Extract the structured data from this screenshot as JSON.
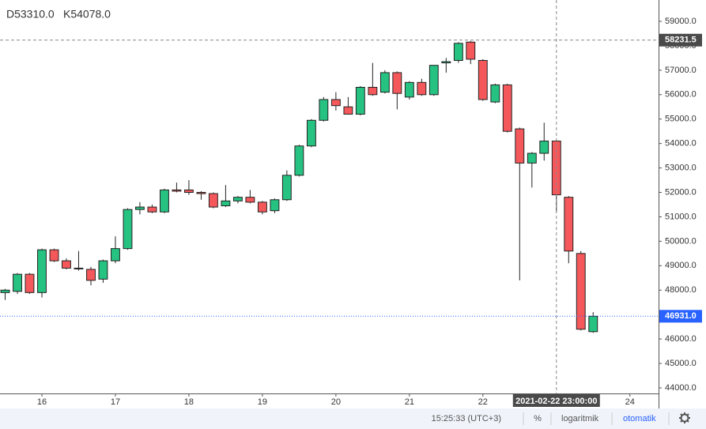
{
  "chart_data": {
    "type": "candlestick",
    "legend_texts": [
      "D53310.0",
      "K54078.0"
    ],
    "x": [
      15.5,
      15.667,
      15.833,
      16.0,
      16.167,
      16.333,
      16.5,
      16.667,
      16.833,
      17.0,
      17.167,
      17.333,
      17.5,
      17.667,
      17.833,
      18.0,
      18.167,
      18.333,
      18.5,
      18.667,
      18.833,
      19.0,
      19.167,
      19.333,
      19.5,
      19.667,
      19.833,
      20.0,
      20.167,
      20.333,
      20.5,
      20.667,
      20.833,
      21.0,
      21.167,
      21.333,
      21.5,
      21.667,
      21.833,
      22.0,
      22.167,
      22.333,
      22.5,
      22.667,
      22.833,
      23.0,
      23.167,
      23.333,
      23.5
    ],
    "series": [
      {
        "name": "open",
        "values": [
          47900,
          47950,
          48650,
          47900,
          49650,
          49200,
          48900,
          48850,
          48450,
          49200,
          49700,
          51300,
          51400,
          51200,
          52100,
          52100,
          52000,
          51950,
          51450,
          51650,
          51800,
          51600,
          51250,
          51700,
          52700,
          53900,
          54950,
          55800,
          55500,
          55200,
          56300,
          56100,
          56900,
          55900,
          56500,
          56000,
          57300,
          57400,
          58150,
          57400,
          55700,
          56400,
          54600,
          53200,
          53600,
          54100,
          51800,
          49500,
          46300
        ]
      },
      {
        "name": "high",
        "values": [
          48050,
          48700,
          48700,
          49700,
          49700,
          49300,
          49600,
          48950,
          49250,
          50200,
          51350,
          51600,
          51500,
          52150,
          52400,
          52500,
          52050,
          52000,
          52300,
          51850,
          52100,
          51650,
          51750,
          52900,
          53950,
          55000,
          55900,
          56100,
          55900,
          56350,
          57300,
          57000,
          56950,
          56550,
          56650,
          57200,
          57500,
          58150,
          58200,
          57450,
          56450,
          56450,
          54650,
          53650,
          54850,
          54150,
          51850,
          49600,
          47100
        ]
      },
      {
        "name": "low",
        "values": [
          47600,
          47850,
          47850,
          47700,
          49150,
          48850,
          48800,
          48200,
          48300,
          49100,
          49650,
          51100,
          51150,
          51150,
          52000,
          51900,
          51700,
          51350,
          51400,
          51550,
          51550,
          51100,
          51150,
          51650,
          52650,
          53850,
          54900,
          55350,
          55250,
          55150,
          55950,
          56050,
          55400,
          55800,
          55950,
          55950,
          56900,
          57300,
          57250,
          55750,
          55650,
          54450,
          48400,
          52200,
          53300,
          51200,
          49100,
          46350,
          46250
        ]
      },
      {
        "name": "close",
        "values": [
          48000,
          48650,
          47900,
          49650,
          49200,
          48900,
          48900,
          48400,
          49200,
          49700,
          51300,
          51400,
          51200,
          52100,
          52050,
          52000,
          51950,
          51400,
          51650,
          51800,
          51600,
          51200,
          51700,
          52700,
          53900,
          54950,
          55800,
          55550,
          55200,
          56300,
          56000,
          56900,
          56050,
          56500,
          56000,
          57200,
          57350,
          58100,
          57450,
          55800,
          56400,
          54500,
          53200,
          53600,
          54100,
          51900,
          49600,
          46400,
          46931
        ]
      }
    ],
    "up_color": "#26c281",
    "down_color": "#f5585b",
    "xlim": [
      15.43,
      24.39
    ],
    "xticks": [
      16,
      17,
      18,
      19,
      20,
      21,
      22,
      24
    ],
    "ylim": [
      43772,
      59873
    ],
    "yticks": [
      {
        "value": 44000,
        "label": "44000.0"
      },
      {
        "value": 45000,
        "label": "45000.0"
      },
      {
        "value": 46000,
        "label": "46000.0"
      },
      {
        "value": 47000,
        "label": "47000.0"
      },
      {
        "value": 48000,
        "label": "48000.0"
      },
      {
        "value": 49000,
        "label": "49000.0"
      },
      {
        "value": 50000,
        "label": "50000.0"
      },
      {
        "value": 51000,
        "label": "51000.0"
      },
      {
        "value": 52000,
        "label": "52000.0"
      },
      {
        "value": 53000,
        "label": "53000.0"
      },
      {
        "value": 54000,
        "label": "54000.0"
      },
      {
        "value": 55000,
        "label": "55000.0"
      },
      {
        "value": 56000,
        "label": "56000.0"
      },
      {
        "value": 57000,
        "label": "57000.0"
      },
      {
        "value": 58000,
        "label": "58000.0"
      },
      {
        "value": 59000,
        "label": "59000.0"
      }
    ],
    "last_price": {
      "value": 46931,
      "label": "46931.0"
    },
    "crosshair": {
      "x": 23.0,
      "y": 58231.5,
      "time_label": "2021-02-22 23:00:00"
    },
    "footer": {
      "time": "15:25:33 (UTC+3)",
      "percent": "%",
      "log": "logaritmik",
      "auto": "otomatik"
    }
  }
}
